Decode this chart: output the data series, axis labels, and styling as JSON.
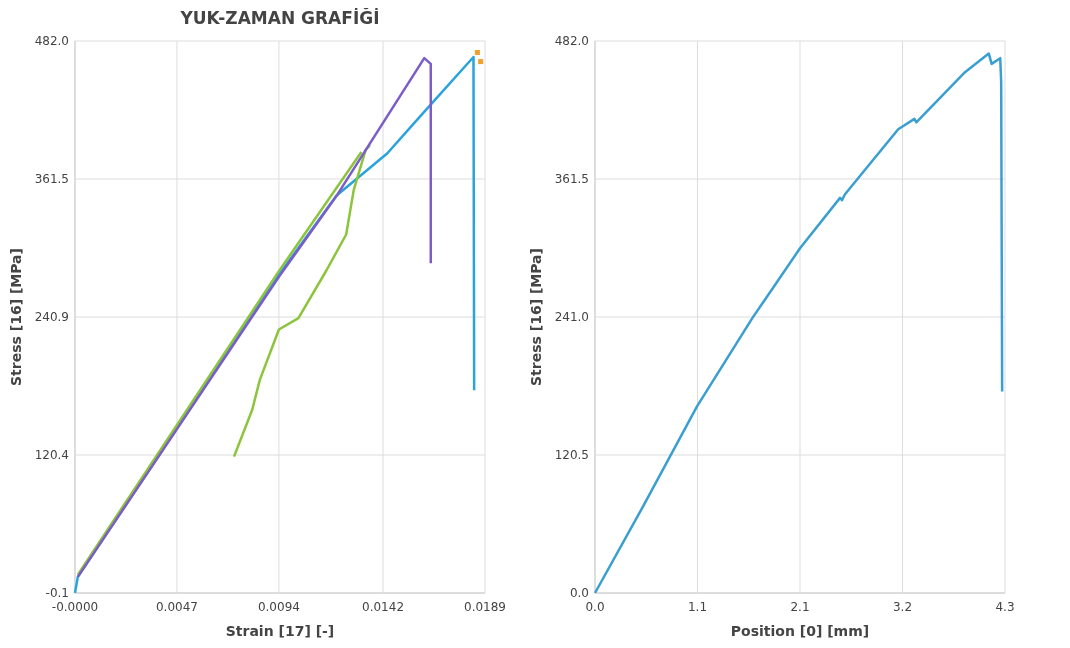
{
  "chart_data": [
    {
      "type": "line",
      "title": "YUK-ZAMAN GRAFİĞİ",
      "xlabel": "Strain [17] [-]",
      "ylabel": "Stress [16] [MPa]",
      "xlim": [
        0,
        0.0189
      ],
      "ylim": [
        -0.1,
        482.0
      ],
      "xticks": [
        {
          "value": 0,
          "label": "-0.0000"
        },
        {
          "value": 0.0047,
          "label": "0.0047"
        },
        {
          "value": 0.0094,
          "label": "0.0094"
        },
        {
          "value": 0.0142,
          "label": "0.0142"
        },
        {
          "value": 0.0189,
          "label": "0.0189"
        }
      ],
      "yticks": [
        {
          "value": -0.1,
          "label": "-0.1"
        },
        {
          "value": 120.4,
          "label": "120.4"
        },
        {
          "value": 240.9,
          "label": "240.9"
        },
        {
          "value": 361.5,
          "label": "361.5"
        },
        {
          "value": 482.0,
          "label": "482.0"
        }
      ],
      "grid": true,
      "series": [
        {
          "color": "#2aa3dc",
          "x": [
            0,
            0.00013,
            0.0047,
            0.0094,
            0.01206,
            0.0144,
            0.0159,
            0.01837,
            0.01837,
            0.0184
          ],
          "values": [
            0,
            14,
            144,
            278,
            347,
            384,
            416,
            468,
            460,
            177
          ]
        },
        {
          "color": "#8cc43c",
          "x": [
            0.00013,
            0.0094,
            0.0132,
            null,
            0.00733,
            0.00817,
            0.00852,
            0.0094,
            0.0103,
            0.0116,
            0.0125,
            0.01285,
            0.0134,
            0.0136
          ],
          "values": [
            16,
            281,
            385,
            null,
            119,
            160,
            186,
            230,
            240,
            282,
            313,
            352,
            387,
            391
          ]
        },
        {
          "color": "#7b5cc9",
          "x": [
            0.00013,
            0.0047,
            0.0094,
            0.0121,
            0.0161,
            0.0164,
            0.0164
          ],
          "values": [
            14,
            143,
            276,
            348,
            467,
            462,
            288
          ]
        },
        {
          "type": "scatter",
          "marker": "square",
          "color": "#f0a030",
          "x": [
            0.01855,
            0.0187
          ],
          "values": [
            472,
            464
          ]
        }
      ]
    },
    {
      "type": "line",
      "xlabel": "Position [0] [mm]",
      "ylabel": "Stress [16] [MPa]",
      "xlim": [
        0,
        4.3
      ],
      "ylim": [
        0,
        482.0
      ],
      "xticks": [
        {
          "value": 0,
          "label": "0.0"
        },
        {
          "value": 1.075,
          "label": "1.1"
        },
        {
          "value": 2.15,
          "label": "2.1"
        },
        {
          "value": 3.225,
          "label": "3.2"
        },
        {
          "value": 4.3,
          "label": "4.3"
        }
      ],
      "yticks": [
        {
          "value": 0,
          "label": "0.0"
        },
        {
          "value": 120.5,
          "label": "120.5"
        },
        {
          "value": 241.0,
          "label": "241.0"
        },
        {
          "value": 361.5,
          "label": "361.5"
        },
        {
          "value": 482.0,
          "label": "482.0"
        }
      ],
      "grid": true,
      "series": [
        {
          "color": "#3a9fd0",
          "x": [
            0,
            0.5,
            1.07,
            1.65,
            2.15,
            2.57,
            2.59,
            2.62,
            3.18,
            3.35,
            3.37,
            3.87,
            4.13,
            4.16,
            4.25,
            4.26,
            4.27
          ],
          "values": [
            0,
            75,
            163,
            240,
            301,
            345,
            343,
            348,
            405,
            414,
            411,
            454,
            471,
            462,
            467,
            446,
            176
          ]
        }
      ]
    }
  ]
}
